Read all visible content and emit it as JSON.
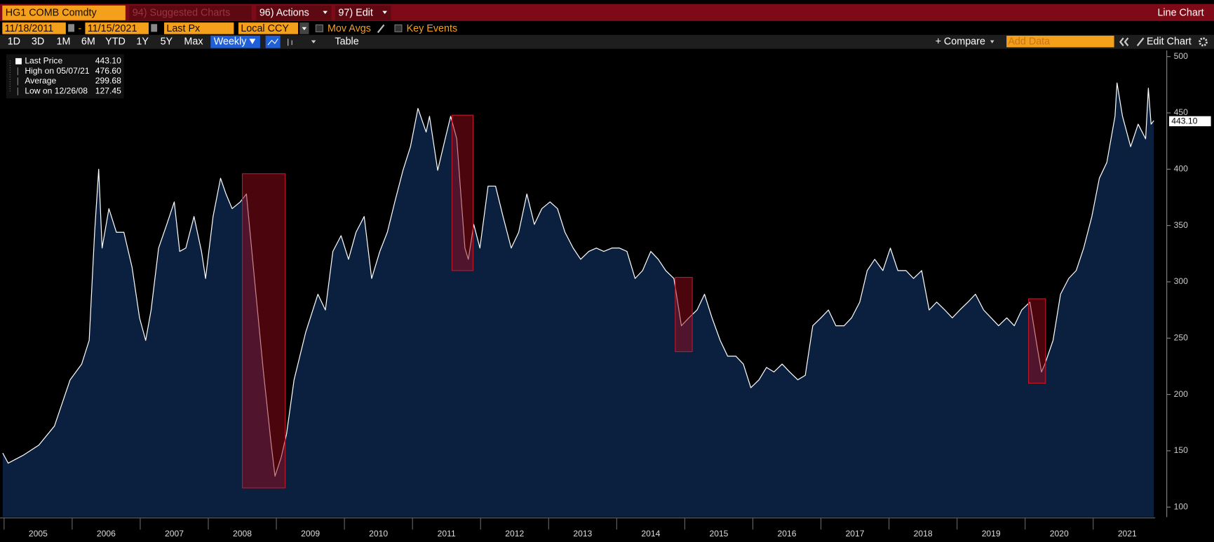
{
  "toolbar": {
    "ticker": "HG1 COMB Comdty",
    "suggested": "94) Suggested Charts",
    "actions": "96) Actions",
    "edit": "97) Edit",
    "chart_kind": "Line Chart"
  },
  "controls": {
    "start_date": "11/18/2011",
    "date_sep": "-",
    "end_date": "11/15/2021",
    "field": "Last Px",
    "currency": "Local CCY",
    "mov_avgs": "Mov Avgs",
    "key_events": "Key Events"
  },
  "ranges": {
    "buttons": [
      "1D",
      "3D",
      "1M",
      "6M",
      "YTD",
      "1Y",
      "5Y",
      "Max"
    ],
    "frequency": "Weekly",
    "table": "Table",
    "compare": "+ Compare",
    "add_data": "Add Data",
    "edit_chart": "Edit Chart"
  },
  "legend": [
    {
      "label": "Last Price",
      "value": "443.10"
    },
    {
      "label": "High on 05/07/21",
      "value": "476.60"
    },
    {
      "label": "Average",
      "value": "299.68"
    },
    {
      "label": "Low on 12/26/08",
      "value": "127.45"
    }
  ],
  "chart_data": {
    "type": "line",
    "color": "#ffffff",
    "area_color": "#0b1f3f",
    "x": [
      2004.98,
      2005.06,
      2005.28,
      2005.51,
      2005.74,
      2005.97,
      2006.14,
      2006.25,
      2006.33,
      2006.39,
      2006.44,
      2006.54,
      2006.65,
      2006.76,
      2006.88,
      2006.99,
      2007.08,
      2007.16,
      2007.27,
      2007.39,
      2007.5,
      2007.58,
      2007.67,
      2007.79,
      2007.9,
      2007.96,
      2008.07,
      2008.18,
      2008.26,
      2008.35,
      2008.47,
      2008.56,
      2008.7,
      2008.81,
      2008.92,
      2008.98,
      2009.07,
      2009.15,
      2009.26,
      2009.43,
      2009.61,
      2009.72,
      2009.83,
      2009.95,
      2010.06,
      2010.17,
      2010.29,
      2010.4,
      2010.52,
      2010.63,
      2010.74,
      2010.86,
      2010.97,
      2011.08,
      2011.2,
      2011.25,
      2011.37,
      2011.48,
      2011.56,
      2011.65,
      2011.71,
      2011.77,
      2011.82,
      2011.9,
      2011.99,
      2012.11,
      2012.22,
      2012.33,
      2012.45,
      2012.56,
      2012.68,
      2012.79,
      2012.9,
      2013.02,
      2013.13,
      2013.24,
      2013.36,
      2013.47,
      2013.59,
      2013.7,
      2013.81,
      2013.93,
      2014.04,
      2014.15,
      2014.27,
      2014.38,
      2014.5,
      2014.61,
      2014.72,
      2014.84,
      2014.95,
      2015.06,
      2015.18,
      2015.29,
      2015.4,
      2015.52,
      2015.63,
      2015.75,
      2015.86,
      2015.97,
      2016.09,
      2016.2,
      2016.31,
      2016.43,
      2016.54,
      2016.66,
      2016.77,
      2016.88,
      2017.0,
      2017.11,
      2017.22,
      2017.34,
      2017.45,
      2017.57,
      2017.68,
      2017.79,
      2017.91,
      2018.02,
      2018.13,
      2018.25,
      2018.36,
      2018.48,
      2018.59,
      2018.7,
      2018.82,
      2018.93,
      2019.04,
      2019.16,
      2019.27,
      2019.39,
      2019.5,
      2019.61,
      2019.73,
      2019.84,
      2019.95,
      2020.07,
      2020.18,
      2020.24,
      2020.29,
      2020.41,
      2020.52,
      2020.64,
      2020.75,
      2020.86,
      2020.98,
      2021.09,
      2021.2,
      2021.32,
      2021.35,
      2021.43,
      2021.55,
      2021.66,
      2021.77,
      2021.81,
      2021.85,
      2021.89
    ],
    "values": [
      148,
      139,
      146,
      155,
      172,
      213,
      227,
      248,
      344,
      400,
      330,
      365,
      344,
      344,
      313,
      268,
      248,
      275,
      330,
      351,
      371,
      327,
      330,
      358,
      327,
      303,
      358,
      392,
      378,
      365,
      371,
      378,
      289,
      220,
      158,
      127.45,
      144,
      165,
      213,
      255,
      289,
      275,
      327,
      341,
      320,
      344,
      358,
      303,
      327,
      344,
      371,
      399,
      420,
      454,
      433,
      447,
      399,
      427,
      447,
      427,
      378,
      330,
      320,
      351,
      330,
      385,
      385,
      358,
      330,
      344,
      378,
      351,
      365,
      371,
      365,
      344,
      330,
      320,
      327,
      330,
      327,
      330,
      330,
      327,
      303,
      310,
      327,
      320,
      310,
      303,
      261,
      268,
      275,
      289,
      268,
      248,
      234,
      234,
      227,
      206,
      213,
      224,
      220,
      227,
      220,
      213,
      217,
      261,
      268,
      275,
      261,
      261,
      268,
      282,
      310,
      320,
      310,
      330,
      310,
      310,
      303,
      310,
      275,
      282,
      275,
      268,
      275,
      282,
      289,
      275,
      268,
      261,
      268,
      261,
      275,
      282,
      241,
      220,
      227,
      248,
      289,
      303,
      310,
      330,
      358,
      392,
      406,
      447,
      476.6,
      447,
      420,
      440,
      427,
      472,
      440,
      443.1
    ],
    "xlim": [
      2004.94,
      2021.91
    ],
    "xticks": [
      2005,
      2006,
      2007,
      2008,
      2009,
      2010,
      2011,
      2012,
      2013,
      2014,
      2015,
      2016,
      2017,
      2018,
      2019,
      2020,
      2021
    ],
    "ylim": [
      91.07,
      505.5
    ],
    "yticks": [
      100,
      150,
      200,
      250,
      300,
      350,
      400,
      450,
      500
    ],
    "highlights": [
      {
        "x": [
          2008.5,
          2009.13
        ],
        "y": [
          117,
          396
        ]
      },
      {
        "x": [
          2011.58,
          2011.89
        ],
        "y": [
          310,
          448
        ]
      },
      {
        "x": [
          2014.86,
          2015.11
        ],
        "y": [
          238,
          304
        ]
      },
      {
        "x": [
          2020.05,
          2020.3
        ],
        "y": [
          210,
          285
        ]
      }
    ]
  }
}
